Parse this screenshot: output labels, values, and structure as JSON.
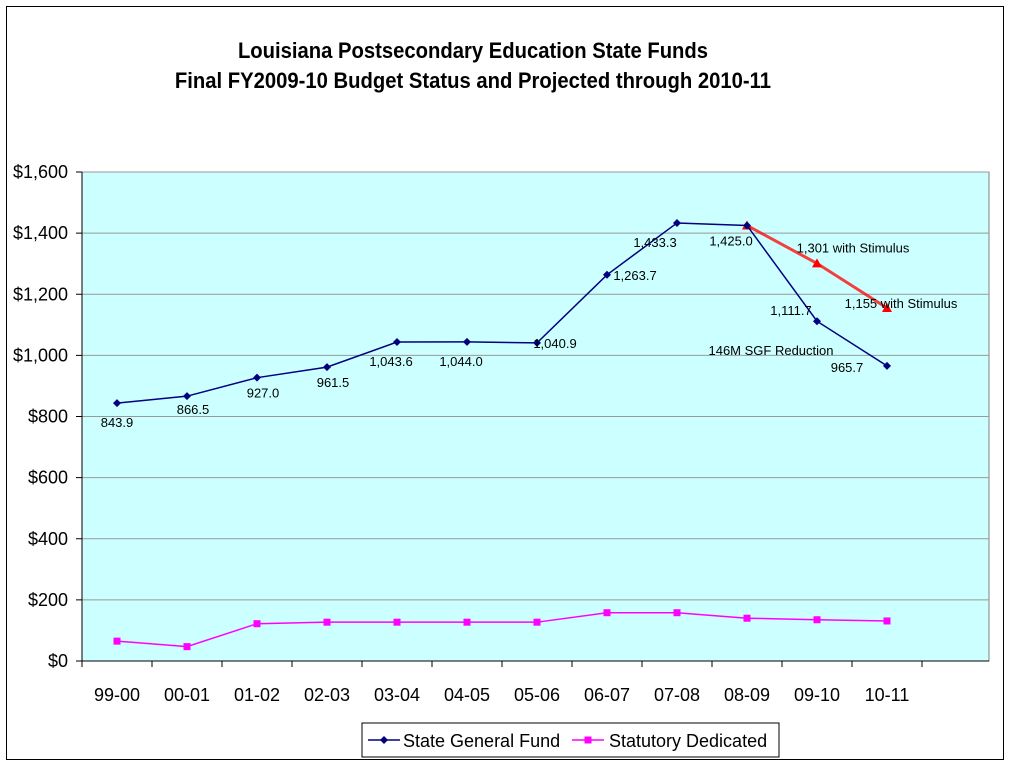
{
  "chart_data": {
    "type": "line",
    "title_lines": [
      "Louisiana Postsecondary Education State Funds",
      "Final FY2009-10 Budget Status and Projected through 2010-11"
    ],
    "categories": [
      "99-00",
      "00-01",
      "01-02",
      "02-03",
      "03-04",
      "04-05",
      "05-06",
      "06-07",
      "07-08",
      "08-09",
      "09-10",
      "10-11"
    ],
    "ylim": [
      0,
      1600
    ],
    "yticks": [
      0,
      200,
      400,
      600,
      800,
      1000,
      1200,
      1400,
      1600
    ],
    "ytick_labels": [
      "$0",
      "$200",
      "$400",
      "$600",
      "$800",
      "$1,000",
      "$1,200",
      "$1,400",
      "$1,600"
    ],
    "grid": true,
    "plot_background": "#ccffff",
    "legend_placement": "bottom",
    "series": [
      {
        "name": "State General Fund",
        "color": "#000080",
        "marker": "diamond",
        "values": [
          843.9,
          866.5,
          927.0,
          961.5,
          1043.6,
          1044.0,
          1040.9,
          1263.7,
          1433.3,
          1425.0,
          1111.7,
          965.7
        ],
        "labels": [
          "843.9",
          "866.5",
          "927.0",
          "961.5",
          "1,043.6",
          "1,044.0",
          "1,040.9",
          "1,263.7",
          "1,433.3",
          "1,425.0",
          "1,111.7",
          "965.7"
        ]
      },
      {
        "name": "Statutory Dedicated",
        "color": "#ff00ff",
        "marker": "square",
        "values": [
          65,
          47,
          122,
          127,
          127,
          127,
          127,
          158,
          158,
          140,
          135,
          131
        ]
      }
    ],
    "stimulus_series": {
      "color": "#ff0000",
      "marker": "triangle",
      "categories": [
        "08-09",
        "09-10",
        "10-11"
      ],
      "values": [
        1425.0,
        1301,
        1155
      ]
    },
    "annotations": [
      {
        "text": "1,301 with Stimulus",
        "category": "09-10",
        "y": 1301
      },
      {
        "text": "1,155 with Stimulus",
        "category": "10-11",
        "y": 1155
      },
      {
        "text": "146M SGF Reduction",
        "category": "09-10",
        "y": 1111.7
      }
    ]
  }
}
